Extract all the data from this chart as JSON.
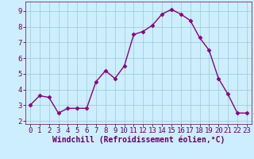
{
  "x": [
    0,
    1,
    2,
    3,
    4,
    5,
    6,
    7,
    8,
    9,
    10,
    11,
    12,
    13,
    14,
    15,
    16,
    17,
    18,
    19,
    20,
    21,
    22,
    23
  ],
  "y": [
    3.0,
    3.6,
    3.5,
    2.5,
    2.8,
    2.8,
    2.8,
    4.5,
    5.2,
    4.7,
    5.5,
    7.5,
    7.7,
    8.1,
    8.8,
    9.1,
    8.8,
    8.4,
    7.3,
    6.5,
    4.7,
    3.7,
    2.5,
    2.5
  ],
  "line_color": "#880088",
  "marker": "D",
  "marker_size": 2.5,
  "bg_color": "#cceeff",
  "grid_color": "#99cccc",
  "xlabel": "Windchill (Refroidissement éolien,°C)",
  "xlabel_fontsize": 7,
  "ylabel_ticks": [
    2,
    3,
    4,
    5,
    6,
    7,
    8,
    9
  ],
  "xlim": [
    -0.5,
    23.5
  ],
  "ylim": [
    1.8,
    9.6
  ],
  "tick_fontsize": 6.5,
  "line_width": 1.0,
  "spine_color": "#660066",
  "label_color": "#660066"
}
